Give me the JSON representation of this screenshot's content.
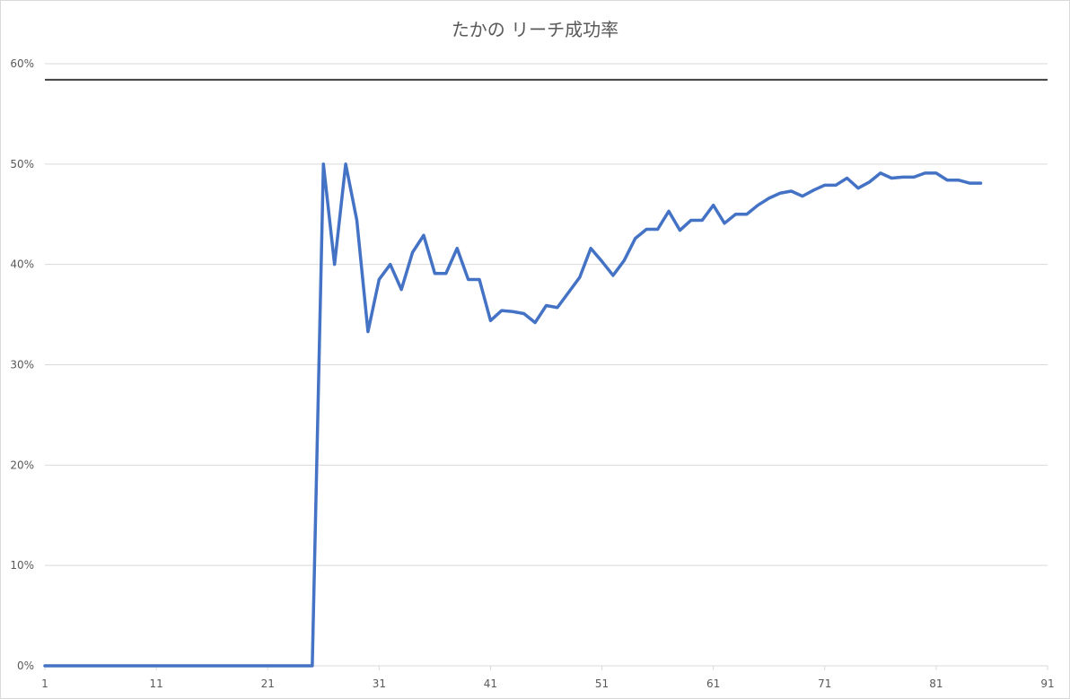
{
  "chart_data": {
    "type": "line",
    "title": "たかの リーチ成功率",
    "xlabel": "",
    "ylabel": "",
    "x_ticks": [
      "1",
      "11",
      "21",
      "31",
      "41",
      "51",
      "61",
      "71",
      "81",
      "91"
    ],
    "y_ticks": [
      "0%",
      "10%",
      "20%",
      "30%",
      "40%",
      "50%",
      "60%"
    ],
    "xlim": [
      1,
      91
    ],
    "ylim": [
      0,
      0.6
    ],
    "grid": true,
    "legend": "none",
    "reference_line": {
      "y": 0.584,
      "color": "#404040"
    },
    "series": [
      {
        "color": "#4472c4",
        "x": [
          1,
          2,
          3,
          4,
          5,
          6,
          7,
          8,
          9,
          10,
          11,
          12,
          13,
          14,
          15,
          16,
          17,
          18,
          19,
          20,
          21,
          22,
          23,
          24,
          25,
          26,
          27,
          28,
          29,
          30,
          31,
          32,
          33,
          34,
          35,
          36,
          37,
          38,
          39,
          40,
          41,
          42,
          43,
          44,
          45,
          46,
          47,
          48,
          49,
          50,
          51,
          52,
          53,
          54,
          55,
          56,
          57,
          58,
          59,
          60,
          61,
          62,
          63,
          64,
          65,
          66,
          67,
          68,
          69,
          70,
          71,
          72,
          73,
          74,
          75,
          76,
          77,
          78,
          79,
          80,
          81,
          82,
          83,
          84,
          85
        ],
        "values": [
          0,
          0,
          0,
          0,
          0,
          0,
          0,
          0,
          0,
          0,
          0,
          0,
          0,
          0,
          0,
          0,
          0,
          0,
          0,
          0,
          0,
          0,
          0,
          0,
          0,
          0.5,
          0.4,
          0.5,
          0.444,
          0.333,
          0.385,
          0.4,
          0.375,
          0.412,
          0.429,
          0.391,
          0.391,
          0.416,
          0.385,
          0.385,
          0.344,
          0.354,
          0.353,
          0.351,
          0.342,
          0.359,
          0.357,
          0.372,
          0.387,
          0.416,
          0.403,
          0.389,
          0.404,
          0.426,
          0.435,
          0.435,
          0.453,
          0.434,
          0.444,
          0.444,
          0.459,
          0.441,
          0.45,
          0.45,
          0.459,
          0.466,
          0.471,
          0.473,
          0.468,
          0.474,
          0.479,
          0.479,
          0.486,
          0.476,
          0.482,
          0.491,
          0.486,
          0.487,
          0.487,
          0.491,
          0.491,
          0.484,
          0.484,
          0.481,
          0.481
        ]
      }
    ]
  }
}
